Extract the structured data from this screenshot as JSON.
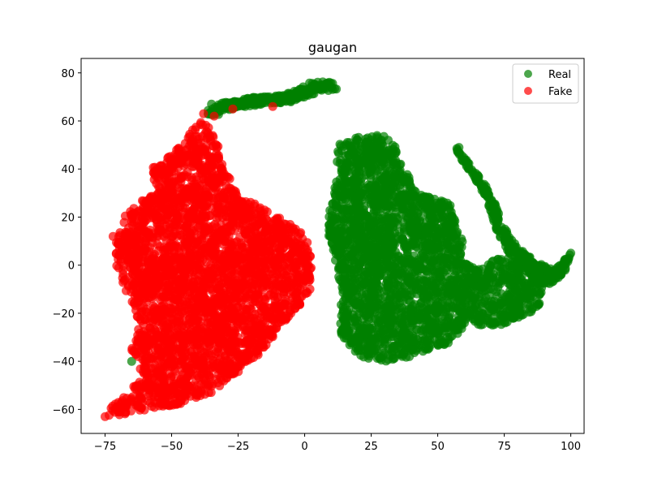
{
  "chart_data": {
    "type": "scatter",
    "title": "gaugan",
    "xlabel": "",
    "ylabel": "",
    "xlim": [
      -84,
      105
    ],
    "ylim": [
      -70,
      86
    ],
    "x_ticks": [
      -75,
      -50,
      -25,
      0,
      25,
      50,
      75,
      100
    ],
    "y_ticks": [
      -60,
      -40,
      -20,
      0,
      20,
      40,
      60,
      80
    ],
    "x_tick_labels": [
      "−75",
      "−50",
      "−25",
      "0",
      "25",
      "50",
      "75",
      "100"
    ],
    "y_tick_labels": [
      "−60",
      "−40",
      "−20",
      "0",
      "20",
      "40",
      "60",
      "80"
    ],
    "grid": false,
    "legend": {
      "position": "top-right"
    },
    "series": [
      {
        "name": "Real",
        "color": "#008000",
        "clusters": [
          {
            "kind": "polygon",
            "count": 2600,
            "points": [
              [
                12,
                50
              ],
              [
                20,
                54
              ],
              [
                30,
                54
              ],
              [
                35,
                48
              ],
              [
                38,
                40
              ],
              [
                42,
                30
              ],
              [
                47,
                29
              ],
              [
                52,
                27
              ],
              [
                55,
                25
              ],
              [
                58,
                12
              ],
              [
                60,
                10
              ],
              [
                59,
                2
              ],
              [
                65,
                -2
              ],
              [
                70,
                2
              ],
              [
                80,
                5
              ],
              [
                85,
                -3
              ],
              [
                90,
                -8
              ],
              [
                88,
                -18
              ],
              [
                80,
                -22
              ],
              [
                75,
                -25
              ],
              [
                68,
                -25
              ],
              [
                60,
                -25
              ],
              [
                55,
                -32
              ],
              [
                48,
                -35
              ],
              [
                40,
                -38
              ],
              [
                30,
                -40
              ],
              [
                20,
                -38
              ],
              [
                14,
                -30
              ],
              [
                13,
                -20
              ],
              [
                14,
                -10
              ],
              [
                12,
                -2
              ],
              [
                10,
                5
              ],
              [
                8,
                15
              ],
              [
                10,
                26
              ],
              [
                12,
                38
              ]
            ]
          },
          {
            "kind": "polygon",
            "count": 350,
            "points": [
              [
                57,
                49
              ],
              [
                62,
                42
              ],
              [
                70,
                30
              ],
              [
                74,
                18
              ],
              [
                78,
                10
              ],
              [
                86,
                2
              ],
              [
                94,
                -2
              ],
              [
                100,
                5
              ],
              [
                98,
                -2
              ],
              [
                93,
                -8
              ],
              [
                88,
                -10
              ],
              [
                82,
                0
              ],
              [
                76,
                6
              ],
              [
                72,
                15
              ],
              [
                68,
                28
              ],
              [
                63,
                38
              ],
              [
                58,
                45
              ]
            ]
          },
          {
            "kind": "path",
            "count": 320,
            "spread": 1.6,
            "points": [
              [
                -35,
                63
              ],
              [
                -30,
                66
              ],
              [
                -20,
                68
              ],
              [
                -10,
                69
              ],
              [
                -5,
                70
              ],
              [
                0,
                72
              ],
              [
                5,
                75
              ],
              [
                10,
                74
              ]
            ]
          }
        ],
        "points": [
          [
            -65,
            -40
          ],
          [
            -52,
            -58
          ],
          [
            57,
            -27
          ],
          [
            -35,
            67
          ],
          [
            10,
            74
          ],
          [
            100,
            5
          ],
          [
            58,
            49
          ]
        ]
      },
      {
        "name": "Fake",
        "color": "#ff0000",
        "clusters": [
          {
            "kind": "polygon",
            "count": 3200,
            "points": [
              [
                -70,
                -5
              ],
              [
                -72,
                10
              ],
              [
                -68,
                20
              ],
              [
                -60,
                28
              ],
              [
                -55,
                30
              ],
              [
                -58,
                40
              ],
              [
                -50,
                46
              ],
              [
                -45,
                52
              ],
              [
                -42,
                58
              ],
              [
                -38,
                60
              ],
              [
                -35,
                56
              ],
              [
                -32,
                48
              ],
              [
                -30,
                40
              ],
              [
                -25,
                30
              ],
              [
                -18,
                25
              ],
              [
                -10,
                20
              ],
              [
                -2,
                15
              ],
              [
                2,
                8
              ],
              [
                3,
                -8
              ],
              [
                0,
                -15
              ],
              [
                -5,
                -20
              ],
              [
                -12,
                -30
              ],
              [
                -18,
                -38
              ],
              [
                -25,
                -45
              ],
              [
                -30,
                -50
              ],
              [
                -38,
                -55
              ],
              [
                -48,
                -58
              ],
              [
                -58,
                -60
              ],
              [
                -68,
                -62
              ],
              [
                -75,
                -63
              ],
              [
                -72,
                -58
              ],
              [
                -65,
                -52
              ],
              [
                -62,
                -45
              ],
              [
                -65,
                -35
              ],
              [
                -62,
                -25
              ],
              [
                -65,
                -15
              ]
            ]
          }
        ],
        "points": [
          [
            -38,
            63
          ],
          [
            -34,
            62
          ],
          [
            -27,
            65
          ],
          [
            -12,
            66
          ],
          [
            -75,
            -63
          ],
          [
            -72,
            12
          ],
          [
            2,
            -10
          ]
        ]
      }
    ]
  }
}
